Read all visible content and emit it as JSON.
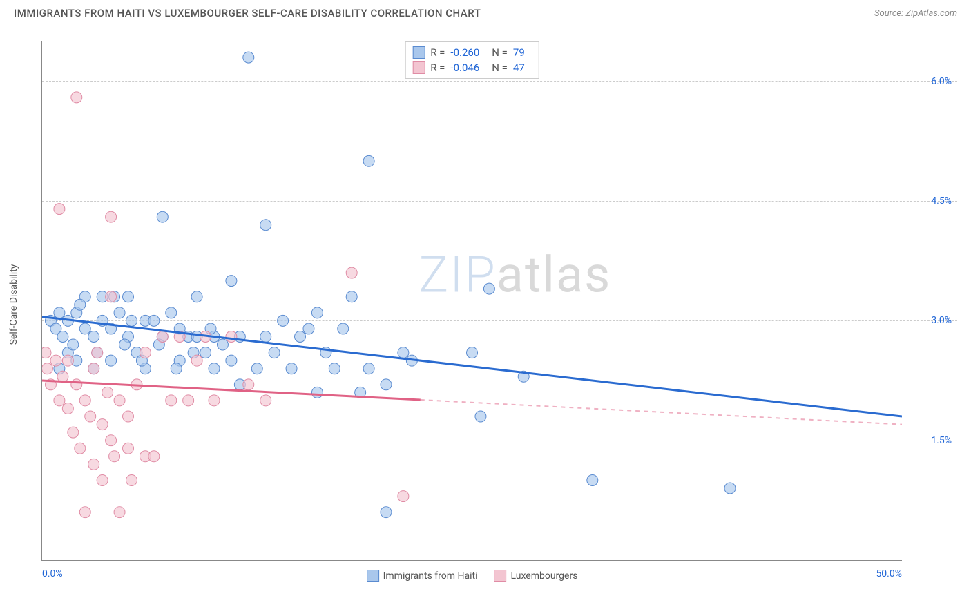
{
  "header": {
    "title": "IMMIGRANTS FROM HAITI VS LUXEMBOURGER SELF-CARE DISABILITY CORRELATION CHART",
    "source_prefix": "Source: ",
    "source_name": "ZipAtlas.com"
  },
  "chart": {
    "type": "scatter",
    "y_axis_label": "Self-Care Disability",
    "x_range": [
      0,
      50
    ],
    "y_range": [
      0,
      6.5
    ],
    "x_ticks": [
      {
        "v": 0,
        "label": "0.0%"
      },
      {
        "v": 50,
        "label": "50.0%"
      }
    ],
    "y_ticks": [
      {
        "v": 1.5,
        "label": "1.5%"
      },
      {
        "v": 3.0,
        "label": "3.0%"
      },
      {
        "v": 4.5,
        "label": "4.5%"
      },
      {
        "v": 6.0,
        "label": "6.0%"
      }
    ],
    "grid_color": "#cccccc",
    "background_color": "#ffffff",
    "axis_color": "#888888",
    "tick_label_color": "#2166d6",
    "series": [
      {
        "id": "haiti",
        "label": "Immigrants from Haiti",
        "r_value": "-0.260",
        "n_value": "79",
        "fill_color": "#a9c7ec",
        "stroke_color": "#5a8bd0",
        "line_color": "#2a6bd0",
        "marker_radius": 8,
        "trend": {
          "x1": 0,
          "y1": 3.05,
          "x2": 50,
          "y2": 1.8,
          "solid_until_x": 50
        },
        "points": [
          [
            0.5,
            3.0
          ],
          [
            0.8,
            2.9
          ],
          [
            1.0,
            3.1
          ],
          [
            1.2,
            2.8
          ],
          [
            1.5,
            3.0
          ],
          [
            1.5,
            2.6
          ],
          [
            2.0,
            3.1
          ],
          [
            2.0,
            2.5
          ],
          [
            2.5,
            2.9
          ],
          [
            2.5,
            3.3
          ],
          [
            3.0,
            2.8
          ],
          [
            3.0,
            2.4
          ],
          [
            3.5,
            3.0
          ],
          [
            3.5,
            3.3
          ],
          [
            4.0,
            2.9
          ],
          [
            4.0,
            2.5
          ],
          [
            4.5,
            3.1
          ],
          [
            5.0,
            2.8
          ],
          [
            5.0,
            3.3
          ],
          [
            5.5,
            2.6
          ],
          [
            6.0,
            3.0
          ],
          [
            6.0,
            2.4
          ],
          [
            6.5,
            3.0
          ],
          [
            7.0,
            4.3
          ],
          [
            7.0,
            2.8
          ],
          [
            7.5,
            3.1
          ],
          [
            8.0,
            2.9
          ],
          [
            8.0,
            2.5
          ],
          [
            8.5,
            2.8
          ],
          [
            9.0,
            3.3
          ],
          [
            9.0,
            2.8
          ],
          [
            9.5,
            2.6
          ],
          [
            10.0,
            2.8
          ],
          [
            10.0,
            2.4
          ],
          [
            10.5,
            2.7
          ],
          [
            11.0,
            3.5
          ],
          [
            11.0,
            2.5
          ],
          [
            11.5,
            2.8
          ],
          [
            11.5,
            2.2
          ],
          [
            12.0,
            6.3
          ],
          [
            12.5,
            2.4
          ],
          [
            13.0,
            2.8
          ],
          [
            13.0,
            4.2
          ],
          [
            13.5,
            2.6
          ],
          [
            14.0,
            3.0
          ],
          [
            14.5,
            2.4
          ],
          [
            15.0,
            2.8
          ],
          [
            15.5,
            2.9
          ],
          [
            16.0,
            3.1
          ],
          [
            16.0,
            2.1
          ],
          [
            16.5,
            2.6
          ],
          [
            17.0,
            2.4
          ],
          [
            17.5,
            2.9
          ],
          [
            18.0,
            3.3
          ],
          [
            18.5,
            2.1
          ],
          [
            19.0,
            2.4
          ],
          [
            19.0,
            5.0
          ],
          [
            20.0,
            2.2
          ],
          [
            20.0,
            0.6
          ],
          [
            21.0,
            2.6
          ],
          [
            21.5,
            2.5
          ],
          [
            25.0,
            2.6
          ],
          [
            25.5,
            1.8
          ],
          [
            26.0,
            3.4
          ],
          [
            28.0,
            2.3
          ],
          [
            32.0,
            1.0
          ],
          [
            40.0,
            0.9
          ],
          [
            1.0,
            2.4
          ],
          [
            1.8,
            2.7
          ],
          [
            2.2,
            3.2
          ],
          [
            3.2,
            2.6
          ],
          [
            4.2,
            3.3
          ],
          [
            4.8,
            2.7
          ],
          [
            5.2,
            3.0
          ],
          [
            5.8,
            2.5
          ],
          [
            6.8,
            2.7
          ],
          [
            7.8,
            2.4
          ],
          [
            8.8,
            2.6
          ],
          [
            9.8,
            2.9
          ]
        ]
      },
      {
        "id": "lux",
        "label": "Luxembourgers",
        "r_value": "-0.046",
        "n_value": "47",
        "fill_color": "#f3c5d1",
        "stroke_color": "#e08ca5",
        "line_color": "#e06285",
        "marker_radius": 8,
        "trend": {
          "x1": 0,
          "y1": 2.25,
          "x2": 50,
          "y2": 1.7,
          "solid_until_x": 22
        },
        "points": [
          [
            0.3,
            2.4
          ],
          [
            0.5,
            2.2
          ],
          [
            0.8,
            2.5
          ],
          [
            1.0,
            2.0
          ],
          [
            1.0,
            4.4
          ],
          [
            1.2,
            2.3
          ],
          [
            1.5,
            1.9
          ],
          [
            1.5,
            2.5
          ],
          [
            1.8,
            1.6
          ],
          [
            2.0,
            5.8
          ],
          [
            2.0,
            2.2
          ],
          [
            2.2,
            1.4
          ],
          [
            2.5,
            2.0
          ],
          [
            2.5,
            0.6
          ],
          [
            2.8,
            1.8
          ],
          [
            3.0,
            2.4
          ],
          [
            3.0,
            1.2
          ],
          [
            3.2,
            2.6
          ],
          [
            3.5,
            1.7
          ],
          [
            3.5,
            1.0
          ],
          [
            3.8,
            2.1
          ],
          [
            4.0,
            4.3
          ],
          [
            4.0,
            1.5
          ],
          [
            4.2,
            1.3
          ],
          [
            4.5,
            2.0
          ],
          [
            4.5,
            0.6
          ],
          [
            5.0,
            1.8
          ],
          [
            5.0,
            1.4
          ],
          [
            5.2,
            1.0
          ],
          [
            5.5,
            2.2
          ],
          [
            6.0,
            1.3
          ],
          [
            6.0,
            2.6
          ],
          [
            6.5,
            1.3
          ],
          [
            7.0,
            2.8
          ],
          [
            7.5,
            2.0
          ],
          [
            8.0,
            2.8
          ],
          [
            8.5,
            2.0
          ],
          [
            9.0,
            2.5
          ],
          [
            9.5,
            2.8
          ],
          [
            10.0,
            2.0
          ],
          [
            11.0,
            2.8
          ],
          [
            12.0,
            2.2
          ],
          [
            13.0,
            2.0
          ],
          [
            18.0,
            3.6
          ],
          [
            21.0,
            0.8
          ],
          [
            4.0,
            3.3
          ],
          [
            0.2,
            2.6
          ]
        ]
      }
    ],
    "legend_stat_labels": {
      "r": "R =",
      "n": "N ="
    }
  },
  "watermark": {
    "part1": "ZIP",
    "part2": "atlas"
  },
  "bottom_legend": {
    "items": [
      {
        "series": "haiti"
      },
      {
        "series": "lux"
      }
    ]
  }
}
